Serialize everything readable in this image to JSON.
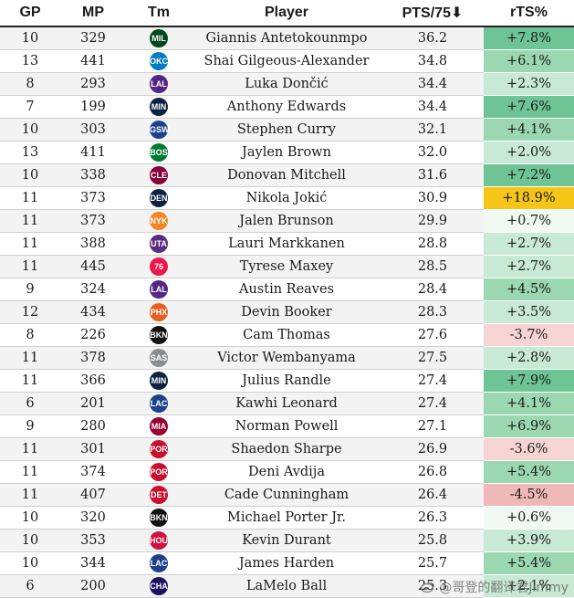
{
  "columns": [
    "GP",
    "MP",
    "Tm",
    "Player",
    "PTS/75⬇",
    "rTS%"
  ],
  "colors": {
    "rts_high": "#f5c518",
    "positive_scale": [
      "#f1f9f3",
      "#c8e9d3",
      "#9bd8b2",
      "#6ec494"
    ],
    "negative_scale": [
      "#f6d4d4",
      "#f0b9b9"
    ]
  },
  "rows": [
    {
      "gp": "10",
      "mp": "329",
      "team_icon": "bucks-logo-icon",
      "team_abbr": "MIL",
      "team_color": "#00471b",
      "player": "Giannis Antetokounmpo",
      "pts75": "36.2",
      "rts": "+7.8%",
      "rts_value": 7.8
    },
    {
      "gp": "13",
      "mp": "441",
      "team_icon": "thunder-logo-icon",
      "team_abbr": "OKC",
      "team_color": "#007ac1",
      "player": "Shai Gilgeous-Alexander",
      "pts75": "34.8",
      "rts": "+6.1%",
      "rts_value": 6.1
    },
    {
      "gp": "8",
      "mp": "293",
      "team_icon": "lakers-logo-icon",
      "team_abbr": "LAL",
      "team_color": "#552583",
      "player": "Luka Dončić",
      "pts75": "34.4",
      "rts": "+2.3%",
      "rts_value": 2.3
    },
    {
      "gp": "7",
      "mp": "199",
      "team_icon": "timberwolves-logo-icon",
      "team_abbr": "MIN",
      "team_color": "#0c2340",
      "player": "Anthony Edwards",
      "pts75": "34.4",
      "rts": "+7.6%",
      "rts_value": 7.6
    },
    {
      "gp": "10",
      "mp": "303",
      "team_icon": "warriors-logo-icon",
      "team_abbr": "GSW",
      "team_color": "#1d428a",
      "player": "Stephen Curry",
      "pts75": "32.1",
      "rts": "+4.1%",
      "rts_value": 4.1
    },
    {
      "gp": "13",
      "mp": "411",
      "team_icon": "celtics-logo-icon",
      "team_abbr": "BOS",
      "team_color": "#007a33",
      "player": "Jaylen Brown",
      "pts75": "32.0",
      "rts": "+2.0%",
      "rts_value": 2.0
    },
    {
      "gp": "10",
      "mp": "338",
      "team_icon": "cavaliers-logo-icon",
      "team_abbr": "CLE",
      "team_color": "#860038",
      "player": "Donovan Mitchell",
      "pts75": "31.6",
      "rts": "+7.2%",
      "rts_value": 7.2
    },
    {
      "gp": "11",
      "mp": "373",
      "team_icon": "nuggets-logo-icon",
      "team_abbr": "DEN",
      "team_color": "#0e2240",
      "player": "Nikola Jokić",
      "pts75": "30.9",
      "rts": "+18.9%",
      "rts_value": 18.9
    },
    {
      "gp": "11",
      "mp": "373",
      "team_icon": "knicks-logo-icon",
      "team_abbr": "NYK",
      "team_color": "#f58426",
      "player": "Jalen Brunson",
      "pts75": "29.9",
      "rts": "+0.7%",
      "rts_value": 0.7
    },
    {
      "gp": "11",
      "mp": "388",
      "team_icon": "jazz-logo-icon",
      "team_abbr": "UTA",
      "team_color": "#5b2c83",
      "player": "Lauri Markkanen",
      "pts75": "28.8",
      "rts": "+2.7%",
      "rts_value": 2.7
    },
    {
      "gp": "11",
      "mp": "445",
      "team_icon": "76ers-logo-icon",
      "team_abbr": "76",
      "team_color": "#ed174c",
      "player": "Tyrese Maxey",
      "pts75": "28.5",
      "rts": "+2.7%",
      "rts_value": 2.7
    },
    {
      "gp": "9",
      "mp": "324",
      "team_icon": "lakers-logo-icon",
      "team_abbr": "LAL",
      "team_color": "#552583",
      "player": "Austin Reaves",
      "pts75": "28.4",
      "rts": "+4.5%",
      "rts_value": 4.5
    },
    {
      "gp": "12",
      "mp": "434",
      "team_icon": "suns-logo-icon",
      "team_abbr": "PHX",
      "team_color": "#e56020",
      "player": "Devin Booker",
      "pts75": "28.3",
      "rts": "+3.5%",
      "rts_value": 3.5
    },
    {
      "gp": "8",
      "mp": "226",
      "team_icon": "nets-logo-icon",
      "team_abbr": "BKN",
      "team_color": "#111111",
      "player": "Cam Thomas",
      "pts75": "27.6",
      "rts": "-3.7%",
      "rts_value": -3.7
    },
    {
      "gp": "11",
      "mp": "378",
      "team_icon": "spurs-logo-icon",
      "team_abbr": "SAS",
      "team_color": "#8a8d8f",
      "player": "Victor Wembanyama",
      "pts75": "27.5",
      "rts": "+2.8%",
      "rts_value": 2.8
    },
    {
      "gp": "11",
      "mp": "366",
      "team_icon": "timberwolves-logo-icon",
      "team_abbr": "MIN",
      "team_color": "#0c2340",
      "player": "Julius Randle",
      "pts75": "27.4",
      "rts": "+7.9%",
      "rts_value": 7.9
    },
    {
      "gp": "6",
      "mp": "201",
      "team_icon": "clippers-logo-icon",
      "team_abbr": "LAC",
      "team_color": "#1d428a",
      "player": "Kawhi Leonard",
      "pts75": "27.4",
      "rts": "+4.1%",
      "rts_value": 4.1
    },
    {
      "gp": "9",
      "mp": "280",
      "team_icon": "heat-logo-icon",
      "team_abbr": "MIA",
      "team_color": "#98002e",
      "player": "Norman Powell",
      "pts75": "27.1",
      "rts": "+6.9%",
      "rts_value": 6.9
    },
    {
      "gp": "11",
      "mp": "301",
      "team_icon": "blazers-logo-icon",
      "team_abbr": "POR",
      "team_color": "#c8102e",
      "player": "Shaedon Sharpe",
      "pts75": "26.9",
      "rts": "-3.6%",
      "rts_value": -3.6
    },
    {
      "gp": "11",
      "mp": "374",
      "team_icon": "blazers-logo-icon",
      "team_abbr": "POR",
      "team_color": "#c8102e",
      "player": "Deni Avdija",
      "pts75": "26.8",
      "rts": "+5.4%",
      "rts_value": 5.4
    },
    {
      "gp": "11",
      "mp": "407",
      "team_icon": "pistons-logo-icon",
      "team_abbr": "DET",
      "team_color": "#c8102e",
      "player": "Cade Cunningham",
      "pts75": "26.4",
      "rts": "-4.5%",
      "rts_value": -4.5
    },
    {
      "gp": "10",
      "mp": "320",
      "team_icon": "nets-logo-icon",
      "team_abbr": "BKN",
      "team_color": "#111111",
      "player": "Michael Porter Jr.",
      "pts75": "26.3",
      "rts": "+0.6%",
      "rts_value": 0.6
    },
    {
      "gp": "10",
      "mp": "353",
      "team_icon": "rockets-logo-icon",
      "team_abbr": "HOU",
      "team_color": "#ce1141",
      "player": "Kevin Durant",
      "pts75": "25.8",
      "rts": "+3.9%",
      "rts_value": 3.9
    },
    {
      "gp": "10",
      "mp": "344",
      "team_icon": "clippers-logo-icon",
      "team_abbr": "LAC",
      "team_color": "#1d428a",
      "player": "James Harden",
      "pts75": "25.7",
      "rts": "+5.4%",
      "rts_value": 5.4
    },
    {
      "gp": "6",
      "mp": "200",
      "team_icon": "hornets-logo-icon",
      "team_abbr": "CHA",
      "team_color": "#1d1160",
      "player": "LaMelo Ball",
      "pts75": "25.3",
      "rts": "+2.1%",
      "rts_value": 2.1
    }
  ],
  "watermark": {
    "icon": "weibo-icon",
    "text": "@哥登的翻译君Jimmy"
  }
}
